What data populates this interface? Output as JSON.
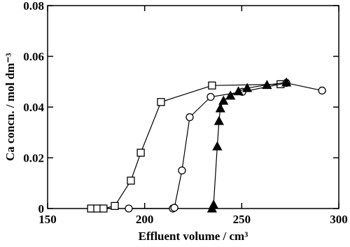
{
  "chart_data": {
    "type": "scatter",
    "xlabel": "Effluent volume / cm³",
    "ylabel": "Ca concn. / mol dm⁻³",
    "xlim": [
      150,
      300
    ],
    "xticks": [
      150,
      200,
      250,
      300
    ],
    "ylim": [
      0,
      0.08
    ],
    "yticks": [
      0,
      0.02,
      0.04,
      0.06,
      0.08
    ],
    "series": [
      {
        "marker": "square",
        "color": "#000000",
        "filled": false,
        "x": [
          172.4,
          175.6,
          178.8,
          184.6,
          192.9,
          198,
          208.4,
          234.7,
          270
        ],
        "values": [
          0,
          0,
          0,
          0.001,
          0.011,
          0.022,
          0.042,
          0.0485,
          0.049
        ]
      },
      {
        "marker": "circle",
        "color": "#000000",
        "filled": false,
        "x": [
          191.8,
          214.5,
          215.3,
          219.2,
          223.2,
          234,
          250.3,
          273,
          291.4
        ],
        "values": [
          0,
          0,
          0.0003,
          0.015,
          0.036,
          0.044,
          0.046,
          0.0495,
          0.0465
        ]
      },
      {
        "marker": "triangle",
        "color": "#000000",
        "filled": true,
        "x": [
          234.7,
          235.5,
          237.4,
          238.3,
          239,
          240.6,
          244.2,
          248.3,
          252.8,
          263,
          273
        ],
        "values": [
          0,
          0.0015,
          0.0245,
          0.0345,
          0.0395,
          0.0425,
          0.0445,
          0.0462,
          0.0475,
          0.0487,
          0.0497
        ]
      }
    ]
  }
}
